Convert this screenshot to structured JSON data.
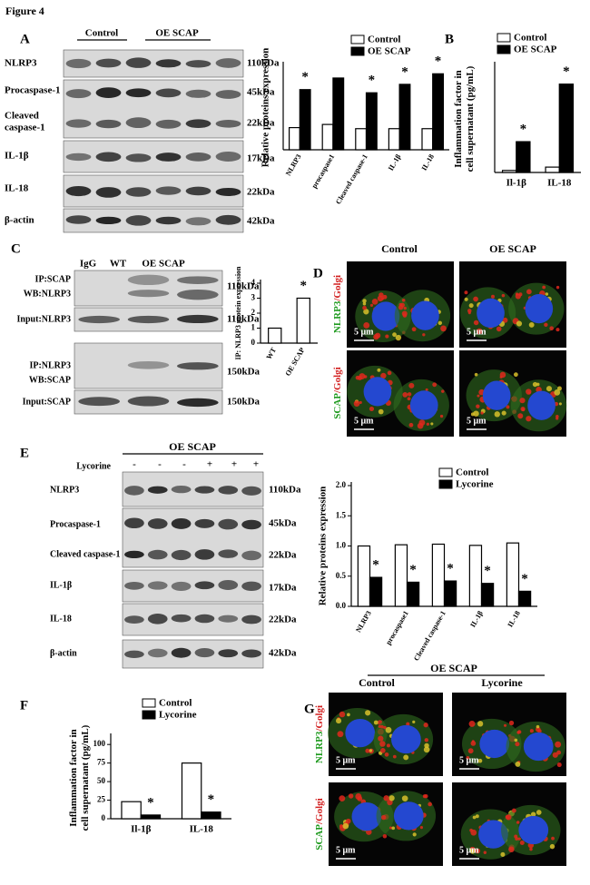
{
  "figure_title": "Figure 4",
  "panel_a": {
    "letter": "A",
    "groups": [
      "Control",
      "OE SCAP"
    ],
    "blots": [
      "NLRP3",
      "Procaspase-1",
      [
        "Cleaved",
        "caspase-1"
      ],
      "IL-1β",
      "IL-18",
      "β-actin"
    ],
    "sizes": [
      "110kDa",
      "45kDa",
      "22kDa",
      "17kDa",
      "22kDa",
      "42kDa"
    ]
  },
  "panel_b": {
    "letter": "B"
  },
  "panel_c": {
    "letter": "C",
    "lanes": [
      "IgG",
      "WT",
      "OE SCAP"
    ],
    "blots": [
      [
        "IP:SCAP",
        "WB:NLRP3"
      ],
      "Input:NLRP3",
      [
        "IP:NLRP3",
        "WB:SCAP"
      ],
      "Input:SCAP"
    ],
    "sizes": [
      "110kDa",
      "110kDa",
      "150kDa",
      "150kDa"
    ]
  },
  "panel_d": {
    "letter": "D",
    "columns": [
      "Control",
      "OE SCAP"
    ],
    "rows": [
      [
        "NLRP3",
        "/Golgi"
      ],
      [
        "SCAP",
        "/Golgi"
      ]
    ],
    "scale_bars": [
      "5 μm",
      "5 μm",
      "5 μm",
      "5 μm"
    ]
  },
  "panel_e": {
    "letter": "E",
    "group": "OE SCAP",
    "treatment": "Lycorine",
    "signs": [
      "-",
      "-",
      "-",
      "+",
      "+",
      "+"
    ],
    "blots": [
      "NLRP3",
      "Procaspase-1",
      "Cleaved caspase-1",
      "IL-1β",
      "IL-18",
      "β-actin"
    ],
    "sizes": [
      "110kDa",
      "45kDa",
      "22kDa",
      "17kDa",
      "22kDa",
      "42kDa"
    ]
  },
  "panel_f": {
    "letter": "F"
  },
  "panel_g": {
    "letter": "G",
    "group": "OE SCAP",
    "columns": [
      "Control",
      "Lycorine"
    ],
    "rows": [
      [
        "NLRP3",
        "/Golgi"
      ],
      [
        "SCAP",
        "/Golgi"
      ]
    ],
    "scale_bars": [
      "5 μm",
      "5 μm",
      "5 μm",
      "5 μm"
    ]
  },
  "chart_data": [
    {
      "type": "bar",
      "y_label": [
        "Relative proteins expression"
      ],
      "categories": [
        "NLRP3",
        "procaspase1",
        "Cleaved caspase-1",
        "IL-1β",
        "IL-18"
      ],
      "series": [
        {
          "name": "Control",
          "color": "#ffffff",
          "values": [
            1.05,
            1.2,
            1.0,
            1.0,
            1.0
          ]
        },
        {
          "name": "OE SCAP",
          "color": "#000000",
          "values": [
            2.85,
            3.4,
            2.7,
            3.1,
            3.6
          ]
        }
      ],
      "ylim": [
        0,
        4
      ],
      "annotations": [
        "*",
        null,
        "*",
        "*",
        "*"
      ]
    },
    {
      "type": "bar",
      "y_label": [
        "Inflammation factor in",
        "cell supernatant (pg/mL)"
      ],
      "categories": [
        "Il-1β",
        "IL-18"
      ],
      "series": [
        {
          "name": "Control",
          "color": "#ffffff",
          "values": [
            1.5,
            4
          ]
        },
        {
          "name": "OE SCAP",
          "color": "#000000",
          "values": [
            23,
            66
          ]
        }
      ],
      "ylim": [
        0,
        80
      ],
      "annotations": [
        "*",
        "*"
      ]
    },
    {
      "type": "bar",
      "y_label": [
        "IP: NLRP3 protein expression"
      ],
      "categories": [
        "WT",
        "OE SCAP"
      ],
      "values": [
        1.0,
        3.0
      ],
      "color": "#ffffff",
      "ylim": [
        0,
        4
      ],
      "yticks": [
        0,
        1,
        2,
        3,
        4
      ],
      "annotations": [
        null,
        "*"
      ]
    },
    {
      "type": "bar",
      "y_label": [
        "Relative proteins expression"
      ],
      "categories": [
        "NLRP3",
        "procaspase1",
        "Cleaved caspase-1",
        "IL-1β",
        "IL-18"
      ],
      "series": [
        {
          "name": "Control",
          "color": "#ffffff",
          "values": [
            1.0,
            1.02,
            1.03,
            1.01,
            1.05
          ]
        },
        {
          "name": "Lycorine",
          "color": "#000000",
          "values": [
            0.48,
            0.4,
            0.42,
            0.38,
            0.25
          ]
        }
      ],
      "ylim": [
        0,
        2
      ],
      "yticks": [
        {
          "value": 0,
          "label": "0.0"
        },
        {
          "value": 0.5,
          "label": "0.5"
        },
        {
          "value": 1,
          "label": "1.0"
        },
        {
          "value": 1.5,
          "label": "1.5"
        },
        {
          "value": 2,
          "label": "2.0"
        }
      ],
      "annotations": [
        "*",
        "*",
        "*",
        "*",
        "*"
      ]
    },
    {
      "type": "bar",
      "y_label": [
        "Inflammation factor in",
        "cell supernatant (pg/mL)"
      ],
      "categories": [
        "Il-1β",
        "IL-18"
      ],
      "series": [
        {
          "name": "Control",
          "color": "#ffffff",
          "values": [
            23,
            75
          ]
        },
        {
          "name": "Lycorine",
          "color": "#000000",
          "values": [
            5,
            9
          ]
        }
      ],
      "ylim": [
        0,
        110
      ],
      "yticks": [
        0,
        25,
        50,
        75,
        100
      ],
      "annotations": [
        "*",
        "*"
      ]
    }
  ]
}
